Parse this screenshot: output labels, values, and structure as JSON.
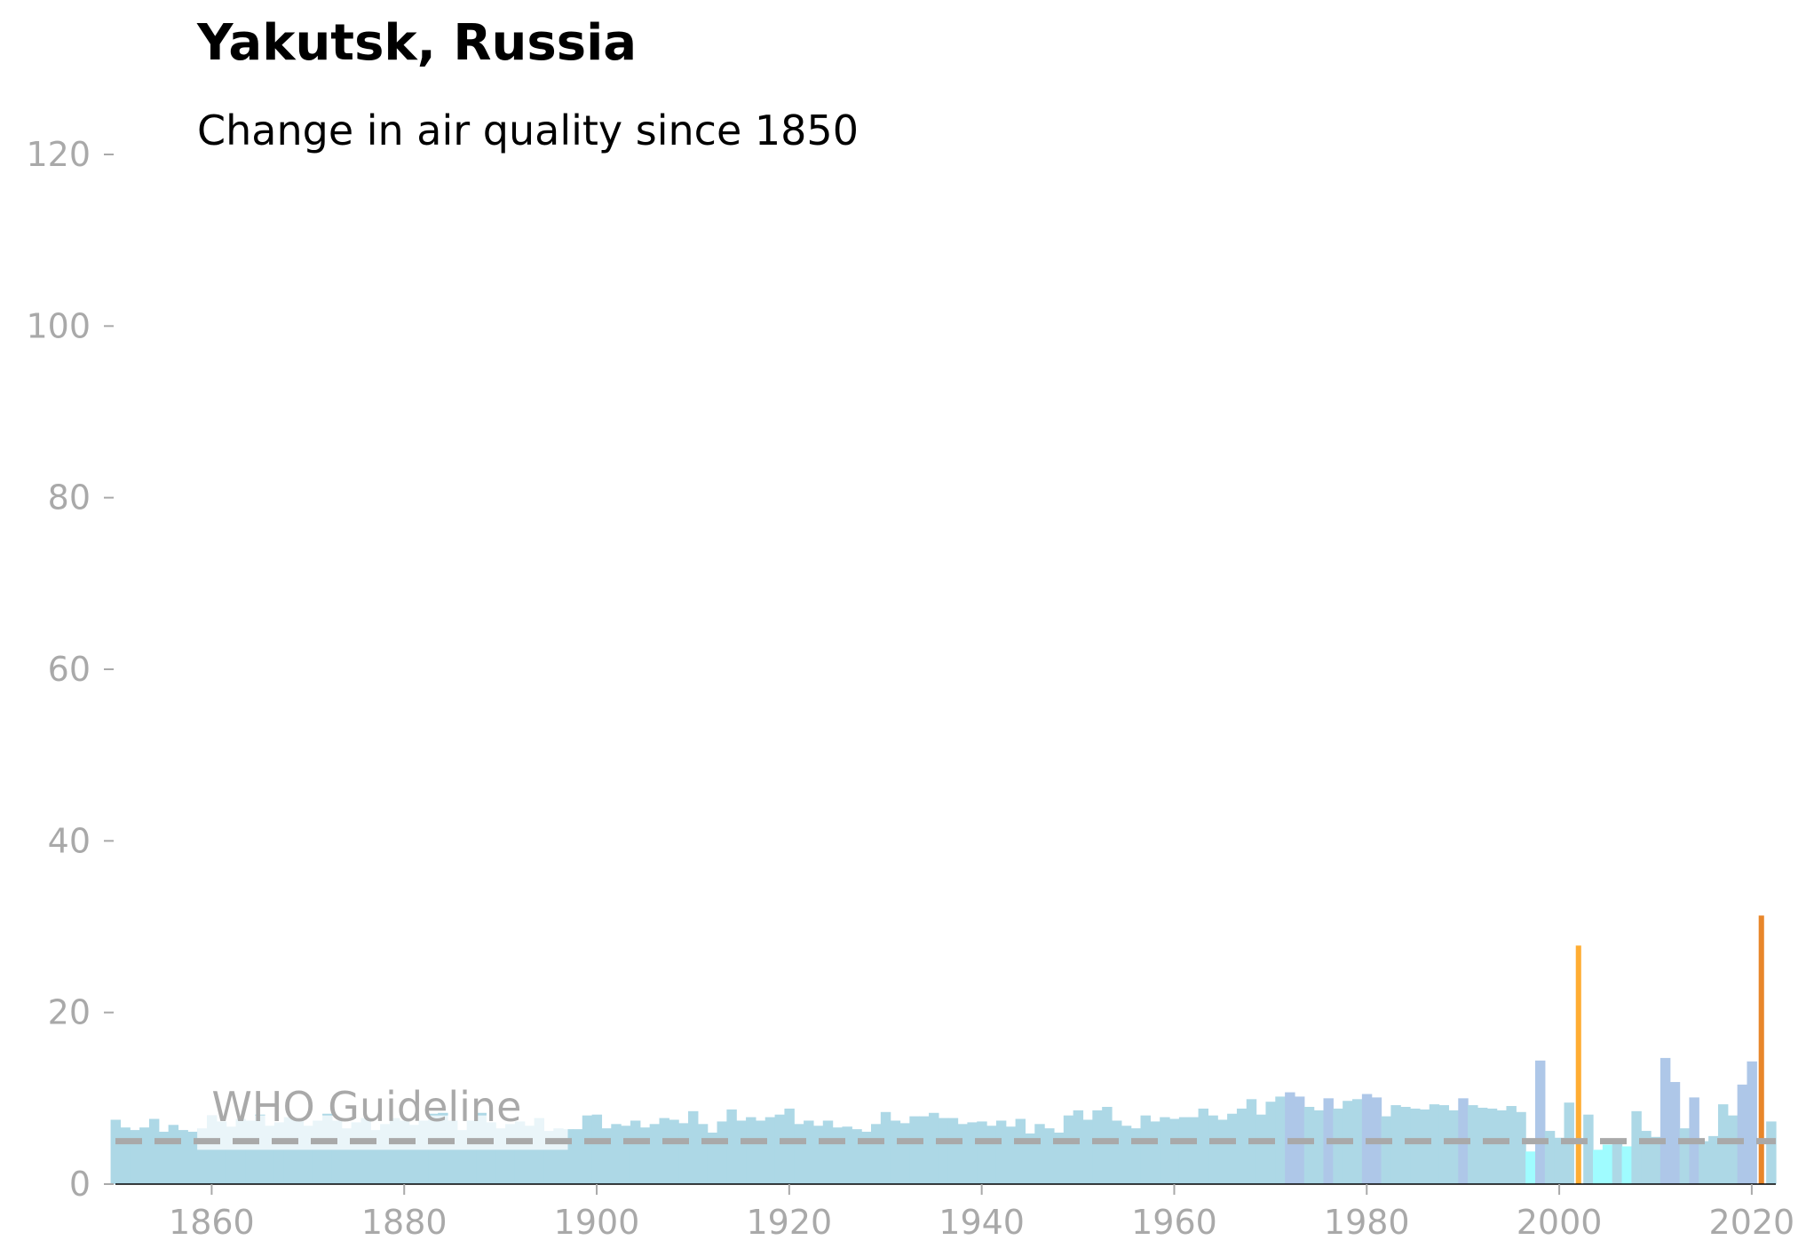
{
  "title": "Yakutsk, Russia",
  "subtitle": "Change in air quality since 1850",
  "colors": {
    "bar_default": "#add8e6",
    "bar_blue": "#aec7e8",
    "bar_cyan": "#9ffcff",
    "bar_orange_2002": "#ffad33",
    "bar_orange_2021": "#e8862a",
    "who_line": "#a9a9a9",
    "axis": "#a9a9a9"
  },
  "chart_data": {
    "type": "bar",
    "title": "Yakutsk, Russia",
    "subtitle": "Change in air quality since 1850",
    "xlabel": "",
    "ylabel": "",
    "xlim": [
      1850,
      2022
    ],
    "ylim": [
      0,
      120
    ],
    "x_ticks": [
      1860,
      1880,
      1900,
      1920,
      1940,
      1960,
      1980,
      2000,
      2020
    ],
    "y_ticks": [
      0,
      20,
      40,
      60,
      80,
      100,
      120
    ],
    "grid": false,
    "reference_line": {
      "label": "WHO Guideline",
      "value": 5,
      "style": "dashed"
    },
    "label_box_end_year": 1897,
    "years": [
      1850,
      1851,
      1852,
      1853,
      1854,
      1855,
      1856,
      1857,
      1858,
      1859,
      1860,
      1861,
      1862,
      1863,
      1864,
      1865,
      1866,
      1867,
      1868,
      1869,
      1870,
      1871,
      1872,
      1873,
      1874,
      1875,
      1876,
      1877,
      1878,
      1879,
      1880,
      1881,
      1882,
      1883,
      1884,
      1885,
      1886,
      1887,
      1888,
      1889,
      1890,
      1891,
      1892,
      1893,
      1894,
      1895,
      1896,
      1897,
      1898,
      1899,
      1900,
      1901,
      1902,
      1903,
      1904,
      1905,
      1906,
      1907,
      1908,
      1909,
      1910,
      1911,
      1912,
      1913,
      1914,
      1915,
      1916,
      1917,
      1918,
      1919,
      1920,
      1921,
      1922,
      1923,
      1924,
      1925,
      1926,
      1927,
      1928,
      1929,
      1930,
      1931,
      1932,
      1933,
      1934,
      1935,
      1936,
      1937,
      1938,
      1939,
      1940,
      1941,
      1942,
      1943,
      1944,
      1945,
      1946,
      1947,
      1948,
      1949,
      1950,
      1951,
      1952,
      1953,
      1954,
      1955,
      1956,
      1957,
      1958,
      1959,
      1960,
      1961,
      1962,
      1963,
      1964,
      1965,
      1966,
      1967,
      1968,
      1969,
      1970,
      1971,
      1972,
      1973,
      1974,
      1975,
      1976,
      1977,
      1978,
      1979,
      1980,
      1981,
      1982,
      1983,
      1984,
      1985,
      1986,
      1987,
      1988,
      1989,
      1990,
      1991,
      1992,
      1993,
      1994,
      1995,
      1996,
      1997,
      1998,
      1999,
      2000,
      2001,
      2002,
      2003,
      2004,
      2005,
      2006,
      2007,
      2008,
      2009,
      2010,
      2011,
      2012,
      2013,
      2014,
      2015,
      2016,
      2017,
      2018,
      2019,
      2020,
      2021,
      2022
    ],
    "values": [
      7.5,
      6.6,
      6.3,
      6.6,
      7.6,
      6.1,
      6.9,
      6.3,
      6.1,
      6.5,
      8.0,
      7.3,
      6.7,
      7.6,
      7.4,
      8.1,
      6.8,
      7.2,
      7.8,
      7.5,
      6.8,
      7.4,
      8.2,
      7.4,
      6.5,
      7.2,
      7.7,
      6.3,
      7.0,
      7.7,
      7.4,
      6.9,
      7.4,
      8.2,
      8.3,
      7.4,
      6.3,
      7.4,
      8.3,
      7.2,
      6.5,
      7.0,
      7.3,
      6.8,
      7.7,
      6.2,
      6.5,
      6.4,
      6.4,
      8.0,
      8.1,
      6.5,
      7.0,
      6.8,
      7.4,
      6.6,
      7.0,
      7.7,
      7.5,
      7.1,
      8.5,
      7.0,
      6.0,
      7.3,
      8.7,
      7.4,
      7.8,
      7.4,
      7.8,
      8.1,
      8.8,
      7.0,
      7.4,
      6.8,
      7.4,
      6.6,
      6.7,
      6.4,
      6.1,
      7.0,
      8.4,
      7.4,
      7.1,
      7.9,
      7.9,
      8.3,
      7.7,
      7.7,
      7.0,
      7.2,
      7.3,
      6.8,
      7.4,
      6.7,
      7.6,
      5.9,
      7.0,
      6.5,
      6.0,
      8.0,
      8.6,
      7.5,
      8.6,
      9.0,
      7.4,
      6.8,
      6.5,
      8.0,
      7.3,
      7.8,
      7.6,
      7.8,
      7.8,
      8.8,
      8.0,
      7.5,
      8.2,
      8.8,
      9.9,
      8.1,
      9.6,
      10.2,
      10.7,
      10.2,
      9.0,
      8.6,
      10.0,
      8.8,
      9.7,
      9.9,
      10.5,
      10.1,
      7.9,
      9.2,
      9.0,
      8.8,
      8.7,
      9.3,
      9.2,
      8.6,
      10.0,
      9.2,
      8.9,
      8.8,
      8.6,
      9.1,
      8.4,
      3.8,
      14.4,
      6.2,
      5.4,
      9.5,
      27.8,
      8.1,
      4.0,
      4.6,
      5.0,
      4.4,
      8.5,
      6.2,
      5.5,
      14.7,
      11.9,
      6.5,
      10.1,
      5.0,
      5.6,
      9.3,
      8.0,
      11.6,
      14.3,
      31.3,
      7.3
    ],
    "highlight_years": {
      "blue": [
        1972,
        1973,
        1976,
        1980,
        1981,
        1990,
        1998,
        2011,
        2012,
        2014,
        2019,
        2020
      ],
      "cyan": [
        1997,
        2004,
        2005,
        2007
      ],
      "orange_2002": [
        2002
      ],
      "orange_2021": [
        2021
      ]
    }
  }
}
